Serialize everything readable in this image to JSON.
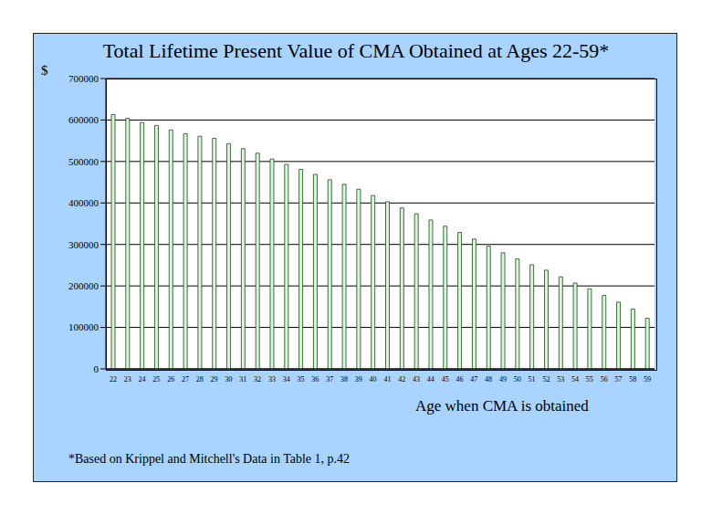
{
  "chart_data": {
    "type": "bar",
    "title": "Total Lifetime Present Value of CMA Obtained at Ages 22-59*",
    "x_label": "Age when CMA is obtained",
    "y_label": "$",
    "annotations": [
      "*Based on Krippel and Mitchell's Data in Table 1, p.42"
    ],
    "categories": [
      "22",
      "23",
      "24",
      "25",
      "26",
      "27",
      "28",
      "29",
      "30",
      "31",
      "32",
      "33",
      "34",
      "35",
      "36",
      "37",
      "38",
      "39",
      "40",
      "41",
      "42",
      "43",
      "44",
      "45",
      "46",
      "47",
      "48",
      "49",
      "50",
      "51",
      "52",
      "53",
      "54",
      "55",
      "56",
      "57",
      "58",
      "59"
    ],
    "values": [
      613000,
      604000,
      594000,
      587000,
      576000,
      567000,
      561000,
      556000,
      543000,
      531000,
      520000,
      506000,
      493000,
      481000,
      469000,
      456000,
      445000,
      433000,
      418000,
      403000,
      388000,
      374000,
      359000,
      344000,
      329000,
      313000,
      296000,
      280000,
      265000,
      251000,
      238000,
      222000,
      207000,
      193000,
      177000,
      161000,
      144000,
      122000
    ],
    "color": "#ccffcc",
    "ylim": [
      0,
      700000
    ],
    "yticks": [
      0,
      100000,
      200000,
      300000,
      400000,
      500000,
      600000,
      700000
    ],
    "grid": true
  }
}
